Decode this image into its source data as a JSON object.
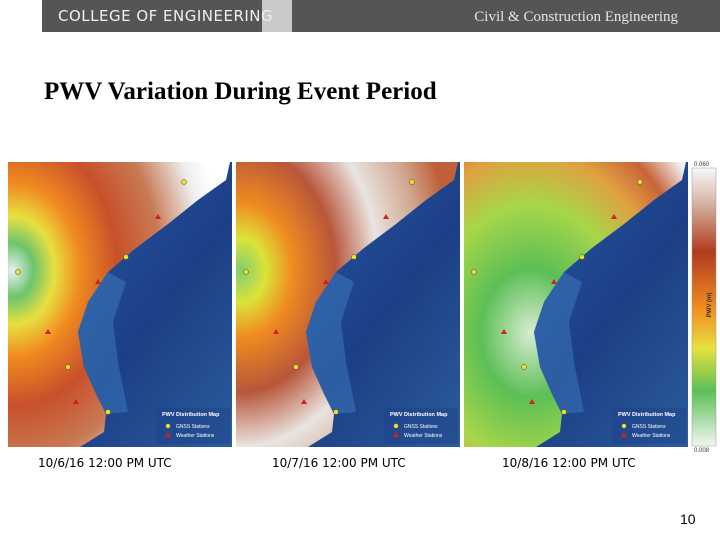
{
  "header": {
    "left": "COLLEGE OF ENGINEERING",
    "right": "Civil & Construction Engineering"
  },
  "title": "PWV Variation During Event Period",
  "maps": [
    {
      "caption": "10/6/16  12:00 PM UTC",
      "legend_title": "PWV Distribution Map",
      "legend_items": [
        "GNSS Stations",
        "Weather Stations"
      ]
    },
    {
      "caption": "10/7/16  12:00 PM UTC",
      "legend_title": "PWV Distribution Map",
      "legend_items": [
        "GNSS Stations",
        "Weather Stations"
      ]
    },
    {
      "caption": "10/8/16  12:00 PM UTC",
      "legend_title": "PWV Distribution Map",
      "legend_items": [
        "GNSS Stations",
        "Weather Stations"
      ]
    }
  ],
  "colorbar": {
    "max": "0.060",
    "label": "PWV (m)",
    "min": "0.008"
  },
  "page_number": "10"
}
